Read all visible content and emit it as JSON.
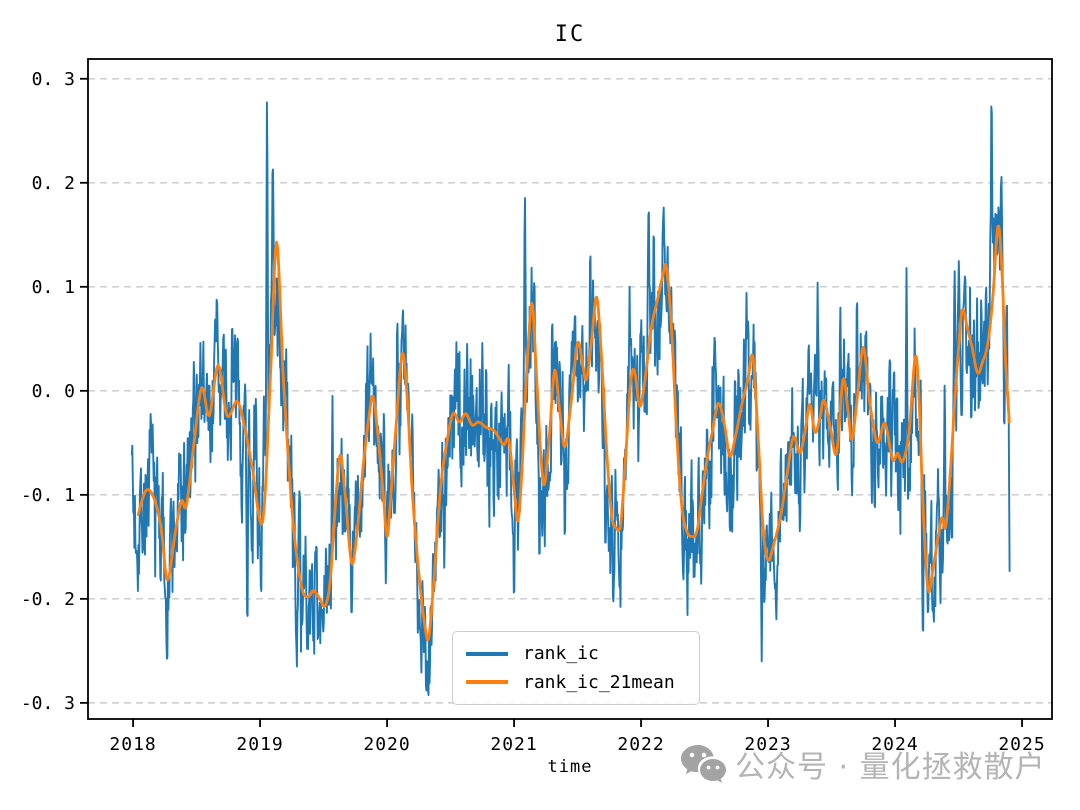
{
  "title": "IC",
  "axes": {
    "x_tick_labels": [
      "2018",
      "2019",
      "2020",
      "2021",
      "2022",
      "2023",
      "2024",
      "2025"
    ],
    "y_tick_labels": [
      "0. 3",
      "0. 2",
      "0. 1",
      "0. 0",
      "-0. 1",
      "-0. 2",
      "-0. 3"
    ]
  },
  "legend": {
    "items": [
      {
        "label": "rank_ic",
        "color": "#1f77b4"
      },
      {
        "label": "rank_ic_21mean",
        "color": "#ff7f0e"
      }
    ]
  },
  "watermark": {
    "icon": "wechat-icon",
    "text": "公众号 · 量化拯救散户",
    "text_color": "#b4b4b4",
    "icon_color": "#a3a3a3"
  },
  "chart_data": {
    "type": "line",
    "title": "IC",
    "xlabel": "time",
    "ylabel": "",
    "grid": "horizontal-dashed",
    "grid_color": "#c9c9c9",
    "legend_position": "lower-center",
    "xlim": [
      2017.645,
      2025.236
    ],
    "ylim": [
      -0.3155,
      0.319
    ],
    "x_ticks": [
      2018,
      2019,
      2020,
      2021,
      2022,
      2023,
      2024,
      2025
    ],
    "y_ticks": [
      0.3,
      0.2,
      0.1,
      0.0,
      -0.1,
      -0.2,
      -0.3
    ],
    "series": [
      {
        "name": "rank_ic",
        "color": "#1f77b4",
        "line_width": 1.9,
        "kind": "daily-noisy",
        "t_start": 2017.99,
        "t_end": 2024.905,
        "step": 0.004,
        "noise": {
          "seed": 7,
          "phi": 0.55,
          "sigma": 0.05,
          "jitter": 0.012,
          "pin_width": 0.006
        },
        "volatility_windows": [
          [
            2018.0,
            2018.45,
            0.058
          ],
          [
            2018.85,
            2019.33,
            0.062
          ],
          [
            2019.33,
            2019.56,
            0.042
          ],
          [
            2020.5,
            2021.06,
            0.062
          ],
          [
            2021.3,
            2021.6,
            0.045
          ],
          [
            2022.5,
            2023.1,
            0.058
          ],
          [
            2023.3,
            2023.95,
            0.048
          ],
          [
            2024.4,
            2024.66,
            0.058
          ]
        ],
        "extremes": [
          [
            2017.992,
            -0.048
          ],
          [
            2018.03,
            -0.155
          ],
          [
            2018.25,
            -0.19
          ],
          [
            2018.53,
            0.046
          ],
          [
            2018.66,
            0.094
          ],
          [
            2018.78,
            0.066
          ],
          [
            2018.9,
            -0.225
          ],
          [
            2019.055,
            0.285
          ],
          [
            2019.1,
            0.225
          ],
          [
            2019.29,
            -0.265
          ],
          [
            2019.37,
            -0.248
          ],
          [
            2019.46,
            -0.235
          ],
          [
            2019.57,
            -0.005
          ],
          [
            2019.72,
            -0.22
          ],
          [
            2019.87,
            0.055
          ],
          [
            2019.99,
            -0.185
          ],
          [
            2020.08,
            0.075
          ],
          [
            2020.31,
            -0.288
          ],
          [
            2020.45,
            -0.17
          ],
          [
            2020.63,
            0.045
          ],
          [
            2020.75,
            0.046
          ],
          [
            2021.0,
            -0.2
          ],
          [
            2021.085,
            0.19
          ],
          [
            2021.2,
            -0.17
          ],
          [
            2021.3,
            0.071
          ],
          [
            2021.4,
            -0.15
          ],
          [
            2021.48,
            0.076
          ],
          [
            2021.6,
            0.135
          ],
          [
            2021.72,
            -0.16
          ],
          [
            2021.78,
            -0.21
          ],
          [
            2021.91,
            0.1
          ],
          [
            2022.06,
            0.18
          ],
          [
            2022.1,
            0.16
          ],
          [
            2022.33,
            -0.175
          ],
          [
            2022.42,
            -0.185
          ],
          [
            2022.58,
            0.06
          ],
          [
            2022.7,
            -0.145
          ],
          [
            2022.83,
            0.094
          ],
          [
            2022.95,
            -0.26
          ],
          [
            2023.12,
            -0.127
          ],
          [
            2023.25,
            -0.135
          ],
          [
            2023.39,
            0.104
          ],
          [
            2023.57,
            0.08
          ],
          [
            2023.7,
            0.092
          ],
          [
            2023.84,
            -0.12
          ],
          [
            2023.96,
            0.037
          ],
          [
            2024.09,
            0.118
          ],
          [
            2024.22,
            -0.243
          ],
          [
            2024.3,
            -0.215
          ],
          [
            2024.39,
            0.005
          ],
          [
            2024.47,
            0.115
          ],
          [
            2024.55,
            0.11
          ],
          [
            2024.76,
            0.29
          ],
          [
            2024.79,
            0.17
          ],
          [
            2024.86,
            -0.04
          ],
          [
            2024.88,
            0.095
          ],
          [
            2024.905,
            -0.217
          ]
        ]
      },
      {
        "name": "rank_ic_21mean",
        "color": "#ff7f0e",
        "line_width": 2.8,
        "kind": "smooth",
        "points": [
          [
            2018.04,
            -0.119
          ],
          [
            2018.1,
            -0.096
          ],
          [
            2018.16,
            -0.102
          ],
          [
            2018.22,
            -0.131
          ],
          [
            2018.27,
            -0.182
          ],
          [
            2018.33,
            -0.138
          ],
          [
            2018.38,
            -0.106
          ],
          [
            2018.42,
            -0.11
          ],
          [
            2018.48,
            -0.05
          ],
          [
            2018.54,
            0.003
          ],
          [
            2018.6,
            -0.024
          ],
          [
            2018.67,
            0.025
          ],
          [
            2018.74,
            -0.024
          ],
          [
            2018.82,
            -0.01
          ],
          [
            2018.88,
            -0.036
          ],
          [
            2018.94,
            -0.075
          ],
          [
            2019.02,
            -0.126
          ],
          [
            2019.08,
            0.01
          ],
          [
            2019.13,
            0.143
          ],
          [
            2019.18,
            0.02
          ],
          [
            2019.22,
            -0.06
          ],
          [
            2019.27,
            -0.14
          ],
          [
            2019.33,
            -0.19
          ],
          [
            2019.38,
            -0.198
          ],
          [
            2019.42,
            -0.192
          ],
          [
            2019.47,
            -0.2
          ],
          [
            2019.51,
            -0.207
          ],
          [
            2019.55,
            -0.185
          ],
          [
            2019.59,
            -0.115
          ],
          [
            2019.63,
            -0.062
          ],
          [
            2019.67,
            -0.1
          ],
          [
            2019.72,
            -0.165
          ],
          [
            2019.76,
            -0.14
          ],
          [
            2019.81,
            -0.075
          ],
          [
            2019.86,
            -0.022
          ],
          [
            2019.89,
            -0.006
          ],
          [
            2019.93,
            -0.045
          ],
          [
            2019.97,
            -0.1
          ],
          [
            2020.0,
            -0.14
          ],
          [
            2020.03,
            -0.1
          ],
          [
            2020.07,
            -0.035
          ],
          [
            2020.12,
            0.036
          ],
          [
            2020.16,
            -0.01
          ],
          [
            2020.2,
            -0.1
          ],
          [
            2020.25,
            -0.175
          ],
          [
            2020.3,
            -0.228
          ],
          [
            2020.33,
            -0.236
          ],
          [
            2020.37,
            -0.18
          ],
          [
            2020.42,
            -0.095
          ],
          [
            2020.47,
            -0.05
          ],
          [
            2020.52,
            -0.022
          ],
          [
            2020.57,
            -0.03
          ],
          [
            2020.62,
            -0.022
          ],
          [
            2020.67,
            -0.033
          ],
          [
            2020.72,
            -0.03
          ],
          [
            2020.78,
            -0.035
          ],
          [
            2020.84,
            -0.038
          ],
          [
            2020.88,
            -0.045
          ],
          [
            2020.92,
            -0.052
          ],
          [
            2020.96,
            -0.048
          ],
          [
            2021.0,
            -0.095
          ],
          [
            2021.03,
            -0.125
          ],
          [
            2021.06,
            -0.08
          ],
          [
            2021.1,
            0.02
          ],
          [
            2021.14,
            0.084
          ],
          [
            2021.17,
            0.03
          ],
          [
            2021.21,
            -0.06
          ],
          [
            2021.24,
            -0.09
          ],
          [
            2021.28,
            -0.04
          ],
          [
            2021.32,
            0.02
          ],
          [
            2021.36,
            -0.02
          ],
          [
            2021.4,
            -0.054
          ],
          [
            2021.45,
            -0.01
          ],
          [
            2021.5,
            0.046
          ],
          [
            2021.54,
            0.025
          ],
          [
            2021.57,
            0.011
          ],
          [
            2021.61,
            0.048
          ],
          [
            2021.65,
            0.09
          ],
          [
            2021.69,
            0.03
          ],
          [
            2021.73,
            -0.06
          ],
          [
            2021.77,
            -0.12
          ],
          [
            2021.8,
            -0.131
          ],
          [
            2021.84,
            -0.128
          ],
          [
            2021.88,
            -0.06
          ],
          [
            2021.92,
            0.01
          ],
          [
            2021.95,
            0.018
          ],
          [
            2021.99,
            -0.015
          ],
          [
            2022.03,
            0.01
          ],
          [
            2022.08,
            0.06
          ],
          [
            2022.13,
            0.088
          ],
          [
            2022.17,
            0.11
          ],
          [
            2022.2,
            0.119
          ],
          [
            2022.24,
            0.06
          ],
          [
            2022.28,
            -0.04
          ],
          [
            2022.32,
            -0.11
          ],
          [
            2022.36,
            -0.135
          ],
          [
            2022.4,
            -0.14
          ],
          [
            2022.44,
            -0.135
          ],
          [
            2022.48,
            -0.1
          ],
          [
            2022.52,
            -0.066
          ],
          [
            2022.56,
            -0.04
          ],
          [
            2022.61,
            -0.012
          ],
          [
            2022.66,
            -0.035
          ],
          [
            2022.7,
            -0.063
          ],
          [
            2022.75,
            -0.04
          ],
          [
            2022.79,
            -0.015
          ],
          [
            2022.84,
            0.01
          ],
          [
            2022.88,
            0.033
          ],
          [
            2022.92,
            -0.04
          ],
          [
            2022.96,
            -0.13
          ],
          [
            2023.0,
            -0.163
          ],
          [
            2023.05,
            -0.145
          ],
          [
            2023.1,
            -0.12
          ],
          [
            2023.15,
            -0.08
          ],
          [
            2023.2,
            -0.044
          ],
          [
            2023.25,
            -0.06
          ],
          [
            2023.29,
            -0.04
          ],
          [
            2023.33,
            -0.013
          ],
          [
            2023.37,
            -0.04
          ],
          [
            2023.41,
            -0.025
          ],
          [
            2023.44,
            -0.009
          ],
          [
            2023.49,
            -0.035
          ],
          [
            2023.54,
            -0.06
          ],
          [
            2023.59,
            0.011
          ],
          [
            2023.63,
            -0.02
          ],
          [
            2023.66,
            -0.047
          ],
          [
            2023.7,
            -0.01
          ],
          [
            2023.75,
            0.042
          ],
          [
            2023.8,
            -0.01
          ],
          [
            2023.86,
            -0.05
          ],
          [
            2023.92,
            -0.031
          ],
          [
            2023.98,
            -0.066
          ],
          [
            2024.02,
            -0.06
          ],
          [
            2024.06,
            -0.068
          ],
          [
            2024.11,
            -0.04
          ],
          [
            2024.16,
            0.033
          ],
          [
            2024.19,
            -0.01
          ],
          [
            2024.22,
            -0.11
          ],
          [
            2024.26,
            -0.191
          ],
          [
            2024.3,
            -0.17
          ],
          [
            2024.34,
            -0.14
          ],
          [
            2024.37,
            -0.122
          ],
          [
            2024.4,
            -0.13
          ],
          [
            2024.44,
            -0.07
          ],
          [
            2024.47,
            -0.01
          ],
          [
            2024.5,
            0.04
          ],
          [
            2024.53,
            0.078
          ],
          [
            2024.57,
            0.06
          ],
          [
            2024.61,
            0.04
          ],
          [
            2024.65,
            0.017
          ],
          [
            2024.69,
            0.028
          ],
          [
            2024.73,
            0.045
          ],
          [
            2024.77,
            0.09
          ],
          [
            2024.81,
            0.158
          ],
          [
            2024.84,
            0.12
          ],
          [
            2024.87,
            0.03
          ],
          [
            2024.9,
            -0.03
          ]
        ]
      }
    ]
  }
}
